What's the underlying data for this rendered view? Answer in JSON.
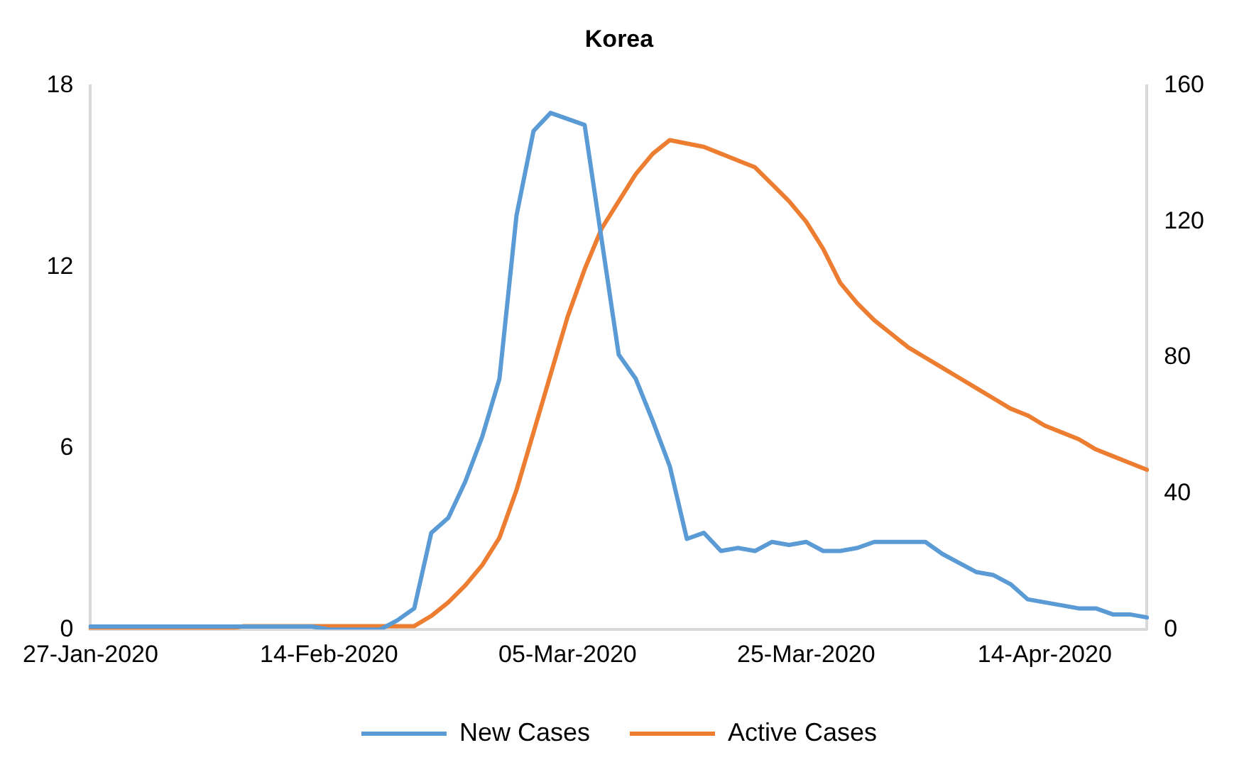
{
  "chart_data": {
    "type": "line",
    "title": "Korea",
    "categories": [
      "27-Jan-2020",
      null,
      null,
      null,
      null,
      null,
      null,
      null,
      null,
      null,
      null,
      null,
      null,
      null,
      "14-Feb-2020",
      null,
      null,
      null,
      null,
      null,
      null,
      null,
      null,
      null,
      null,
      null,
      null,
      null,
      "05-Mar-2020",
      null,
      null,
      null,
      null,
      null,
      null,
      null,
      null,
      null,
      null,
      null,
      null,
      null,
      "25-Mar-2020",
      null,
      null,
      null,
      null,
      null,
      null,
      null,
      null,
      null,
      null,
      null,
      null,
      null,
      "14-Apr-2020",
      null,
      null,
      null,
      null,
      null,
      null
    ],
    "series": [
      {
        "name": "New Cases",
        "color": "#5b9bd5",
        "values": [
          0.1,
          0.1,
          0.1,
          0.1,
          0.1,
          0.1,
          0.1,
          0.1,
          0.1,
          0.1,
          0.1,
          0.1,
          0.1,
          0.1,
          0,
          0,
          0,
          0,
          0.3,
          0.7,
          3.2,
          3.7,
          4.9,
          6.4,
          8.3,
          13.7,
          16.5,
          17.1,
          16.9,
          16.7,
          12.9,
          9.1,
          8.3,
          6.9,
          5.4,
          3.0,
          3.2,
          2.6,
          2.7,
          2.6,
          2.9,
          2.8,
          2.9,
          2.6,
          2.6,
          2.7,
          2.9,
          2.9,
          2.9,
          2.9,
          2.5,
          2.2,
          1.9,
          1.8,
          1.5,
          1.0,
          0.9,
          0.8,
          0.7,
          0.7,
          0.5,
          0.5,
          0.4
        ]
      },
      {
        "name": "Active Cases",
        "color": "#ed7d31",
        "axis": "y2",
        "values": [
          0,
          0,
          0,
          0,
          0,
          0,
          0,
          0,
          0,
          1,
          1,
          1,
          1,
          1,
          1,
          1,
          1,
          1,
          1,
          1,
          4,
          8,
          13,
          19,
          27,
          41,
          58,
          75,
          92,
          106,
          118,
          126,
          134,
          140,
          144,
          143,
          142,
          140,
          138,
          136,
          131,
          126,
          120,
          112,
          102,
          96,
          91,
          87,
          83,
          80,
          77,
          74,
          71,
          68,
          65,
          63,
          60,
          58,
          56,
          53,
          51,
          49,
          47
        ]
      }
    ],
    "ylim": [
      0,
      18
    ],
    "yticks": [
      0,
      6,
      12,
      18
    ],
    "y2lim": [
      0,
      160
    ],
    "y2ticks": [
      0,
      40,
      80,
      120,
      160
    ],
    "grid": false,
    "legend": "bottom",
    "marker": "none",
    "line_style": "solid"
  }
}
